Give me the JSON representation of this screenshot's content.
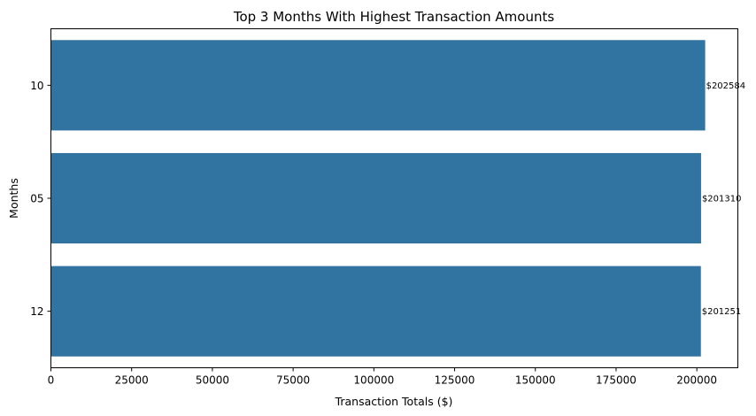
{
  "chart_data": {
    "type": "bar",
    "orientation": "horizontal",
    "title": "Top 3 Months With Highest Transaction Amounts",
    "xlabel": "Transaction Totals ($)",
    "ylabel": "Months",
    "categories": [
      "10",
      "05",
      "12"
    ],
    "values": [
      202584,
      201310,
      201251
    ],
    "data_labels": [
      "$202584",
      "$201310",
      "$201251"
    ],
    "xlim": [
      0,
      212700
    ],
    "xticks": [
      0,
      25000,
      50000,
      75000,
      100000,
      125000,
      150000,
      175000,
      200000
    ],
    "bar_color": "#3274a1",
    "grid": false
  }
}
